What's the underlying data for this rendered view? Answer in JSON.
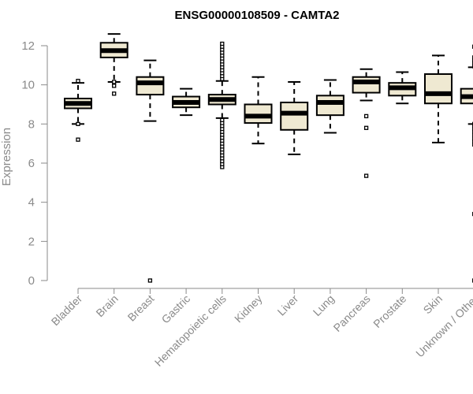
{
  "chart_data": {
    "type": "boxplot",
    "title": "ENSG00000108509 - CAMTA2",
    "xlabel": "",
    "ylabel": "Expression",
    "ylim": [
      0,
      12
    ],
    "yticks": [
      0,
      2,
      4,
      6,
      8,
      10,
      12
    ],
    "box_fill": "#efe9d2",
    "categories": [
      "Bladder",
      "Brain",
      "Breast",
      "Gastric",
      "Hematopoietic cells",
      "Kidney",
      "Liver",
      "Lung",
      "Pancreas",
      "Prostate",
      "Skin",
      "Unknown / Other"
    ],
    "boxes": [
      {
        "name": "Bladder",
        "whisker_low": 8.0,
        "q1": 8.8,
        "median": 9.05,
        "q3": 9.3,
        "whisker_high": 10.1,
        "outliers": [
          7.2,
          8.0,
          10.2
        ]
      },
      {
        "name": "Brain",
        "whisker_low": 10.15,
        "q1": 11.4,
        "median": 11.75,
        "q3": 12.15,
        "whisker_high": 12.6,
        "outliers": [
          9.55,
          9.95,
          10.15
        ]
      },
      {
        "name": "Breast",
        "whisker_low": 8.15,
        "q1": 9.5,
        "median": 10.1,
        "q3": 10.4,
        "whisker_high": 11.25,
        "outliers": [
          0.0
        ]
      },
      {
        "name": "Gastric",
        "whisker_low": 8.45,
        "q1": 8.85,
        "median": 9.1,
        "q3": 9.4,
        "whisker_high": 9.8,
        "outliers": []
      },
      {
        "name": "Hematopoietic cells",
        "whisker_low": 8.3,
        "q1": 9.0,
        "median": 9.25,
        "q3": 9.5,
        "whisker_high": 10.2,
        "outliers": [
          5.8,
          5.95,
          6.1,
          6.25,
          6.4,
          6.55,
          6.7,
          6.85,
          7.0,
          7.15,
          7.3,
          7.45,
          7.6,
          7.75,
          7.9,
          8.05,
          8.2,
          10.3,
          10.45,
          10.6,
          10.75,
          10.9,
          11.05,
          11.2,
          11.35,
          11.5,
          11.65,
          11.8,
          11.95,
          12.1
        ]
      },
      {
        "name": "Kidney",
        "whisker_low": 7.0,
        "q1": 8.05,
        "median": 8.4,
        "q3": 9.0,
        "whisker_high": 10.4,
        "outliers": []
      },
      {
        "name": "Liver",
        "whisker_low": 6.45,
        "q1": 7.7,
        "median": 8.55,
        "q3": 9.1,
        "whisker_high": 10.15,
        "outliers": []
      },
      {
        "name": "Lung",
        "whisker_low": 7.55,
        "q1": 8.45,
        "median": 9.1,
        "q3": 9.45,
        "whisker_high": 10.25,
        "outliers": []
      },
      {
        "name": "Pancreas",
        "whisker_low": 9.2,
        "q1": 9.6,
        "median": 10.15,
        "q3": 10.4,
        "whisker_high": 10.8,
        "outliers": [
          5.35,
          7.8,
          8.4
        ]
      },
      {
        "name": "Prostate",
        "whisker_low": 9.05,
        "q1": 9.45,
        "median": 9.85,
        "q3": 10.1,
        "whisker_high": 10.65,
        "outliers": []
      },
      {
        "name": "Skin",
        "whisker_low": 7.05,
        "q1": 9.05,
        "median": 9.55,
        "q3": 10.55,
        "whisker_high": 11.5,
        "outliers": []
      },
      {
        "name": "Unknown / Other",
        "whisker_low": 8.0,
        "q1": 9.05,
        "median": 9.4,
        "q3": 9.8,
        "whisker_high": 10.9,
        "outliers": [
          0.0,
          3.4,
          6.95,
          7.1,
          7.25,
          7.45,
          7.6,
          7.75,
          7.9,
          8.0,
          10.95,
          11.1,
          11.25,
          11.4,
          11.95
        ]
      }
    ]
  }
}
